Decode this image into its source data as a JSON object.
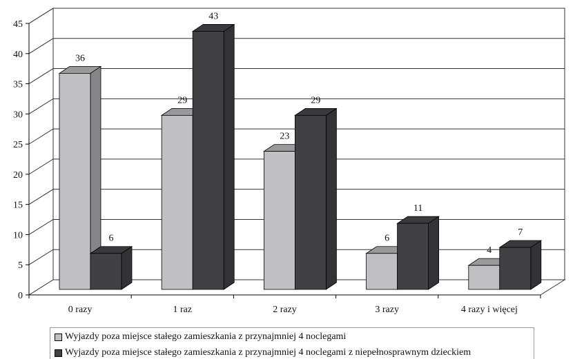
{
  "chart_data": {
    "type": "bar",
    "categories": [
      "0 razy",
      "1 raz",
      "2 razy",
      "3 razy",
      "4 razy i więcej"
    ],
    "series": [
      {
        "name": "Wyjazdy poza miejsce stałego zamieszkania z przynajmniej 4 noclegami",
        "values": [
          36,
          29,
          23,
          6,
          4
        ],
        "color": "#c0c0c4"
      },
      {
        "name": "Wyjazdy poza miejsce stałego zamieszkania z przynajmniej 4 noclegami z niepełnosprawnym dzieckiem",
        "values": [
          6,
          43,
          29,
          11,
          7
        ],
        "color": "#404045"
      }
    ],
    "ylim": [
      0,
      45
    ],
    "yticks": [
      0,
      5,
      10,
      15,
      20,
      25,
      30,
      35,
      40,
      45
    ],
    "grid": true,
    "legend_position": "bottom",
    "style": "3d"
  }
}
